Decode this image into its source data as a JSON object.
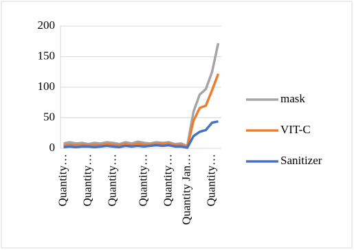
{
  "chart_data": {
    "type": "line",
    "categories": [
      "Quantity…",
      null,
      null,
      null,
      "Quantity…",
      null,
      null,
      null,
      "Quantity…",
      null,
      null,
      null,
      null,
      "Quantity…",
      null,
      null,
      null,
      "Quantity…",
      null,
      null,
      "Quantity Jan…",
      null,
      null,
      null,
      "Quantity…",
      null
    ],
    "series": [
      {
        "name": "mask",
        "color": "#a5a5a5",
        "values": [
          8,
          10,
          8,
          9,
          7,
          9,
          8,
          10,
          9,
          7,
          10,
          8,
          11,
          9,
          8,
          10,
          9,
          10,
          7,
          8,
          4,
          60,
          88,
          97,
          125,
          172
        ]
      },
      {
        "name": "VIT-C",
        "color": "#ed7d31",
        "values": [
          5,
          6,
          5,
          6,
          5,
          6,
          5,
          7,
          6,
          5,
          7,
          5,
          8,
          6,
          6,
          8,
          7,
          8,
          5,
          6,
          2,
          45,
          66,
          70,
          95,
          122
        ]
      },
      {
        "name": "Sanitizer",
        "color": "#4472c4",
        "values": [
          2,
          3,
          2,
          3,
          3,
          2,
          3,
          4,
          3,
          2,
          4,
          3,
          4,
          3,
          4,
          5,
          4,
          5,
          3,
          3,
          1,
          20,
          27,
          30,
          42,
          44
        ]
      }
    ],
    "ylim": [
      0,
      200
    ],
    "yticks": [
      0,
      50,
      100,
      150,
      200
    ],
    "grid": true,
    "legend": "right"
  }
}
